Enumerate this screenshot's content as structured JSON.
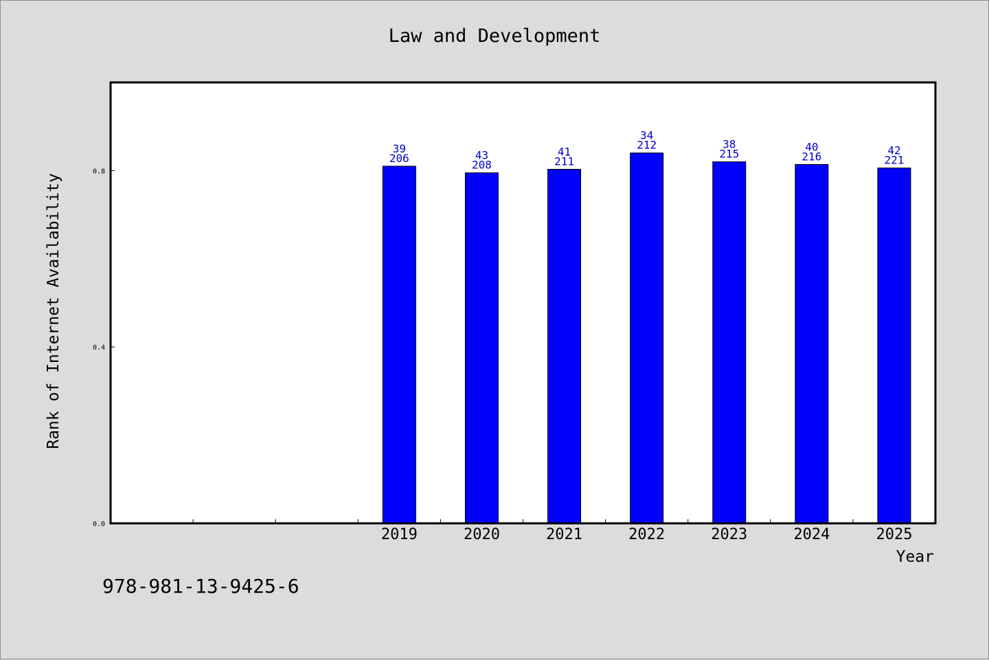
{
  "chart_data": {
    "type": "bar",
    "title": "Law and Development",
    "xlabel": "Year",
    "ylabel": "Rank of Internet Availability",
    "slots": [
      "",
      "",
      "",
      "2019",
      "2020",
      "2021",
      "2022",
      "2023",
      "2024",
      "2025"
    ],
    "categories": [
      "2019",
      "2020",
      "2021",
      "2022",
      "2023",
      "2024",
      "2025"
    ],
    "values": [
      0.81,
      0.795,
      0.803,
      0.84,
      0.82,
      0.814,
      0.806
    ],
    "labels_top": [
      "39",
      "43",
      "41",
      "34",
      "38",
      "40",
      "42"
    ],
    "labels_bottom": [
      "206",
      "208",
      "211",
      "212",
      "215",
      "216",
      "221"
    ],
    "ylim": [
      0,
      1.0
    ],
    "yticks": [
      0.0,
      0.4,
      0.8
    ],
    "ytick_labels": [
      "0.0",
      "0.4",
      "0.8"
    ],
    "bar_color": "#0000ff",
    "label_color": "#0000c8",
    "grid": false,
    "legend": "none"
  },
  "footer": {
    "isbn": "978-981-13-9425-6"
  }
}
